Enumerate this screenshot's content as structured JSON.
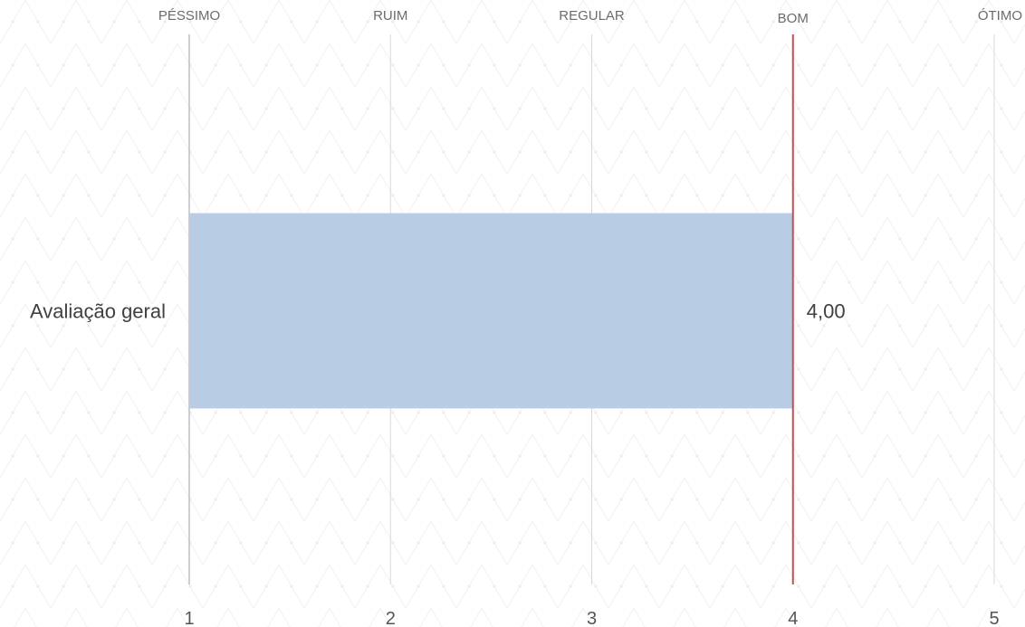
{
  "chart_data": {
    "type": "bar",
    "orientation": "horizontal",
    "categories": [
      "Avaliação geral"
    ],
    "values": [
      4.0
    ],
    "value_labels": [
      "4,00"
    ],
    "xlim": [
      1,
      5
    ],
    "x_ticks": [
      {
        "value": 1,
        "label": "1"
      },
      {
        "value": 2,
        "label": "2"
      },
      {
        "value": 3,
        "label": "3"
      },
      {
        "value": 4,
        "label": "4"
      },
      {
        "value": 5,
        "label": "5"
      }
    ],
    "top_labels": [
      {
        "value": 1,
        "label": "PÉSSIMO"
      },
      {
        "value": 2,
        "label": "RUIM"
      },
      {
        "value": 3,
        "label": "REGULAR"
      },
      {
        "value": 4,
        "label": "BOM"
      },
      {
        "value": 5,
        "label": "ÓTIMO"
      }
    ],
    "reference_line": {
      "value": 4
    },
    "grid": true,
    "title": "",
    "xlabel": "",
    "ylabel": "",
    "colors": {
      "bar": "#b8cce4",
      "reference_line": "#c0504d",
      "grid": "#d9d9d9",
      "axis": "#bfbfbf"
    }
  }
}
